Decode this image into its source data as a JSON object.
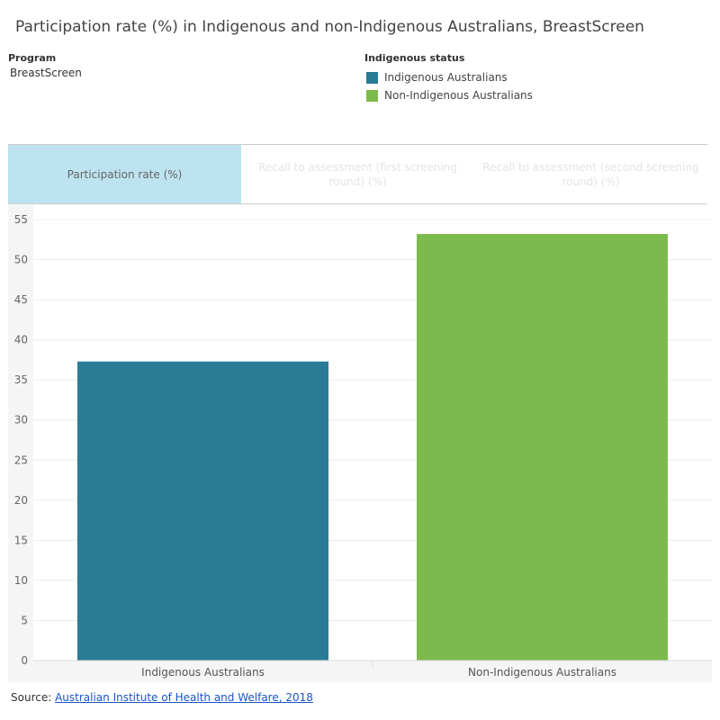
{
  "title": "Participation rate (%) in Indigenous and non-Indigenous Australians, BreastScreen",
  "filter": {
    "label": "Program",
    "value": "BreastScreen"
  },
  "legend": {
    "title": "Indigenous status",
    "items": [
      {
        "label": "Indigenous Australians",
        "color": "#2a7b96"
      },
      {
        "label": "Non-Indigenous Australians",
        "color": "#7dba4d"
      }
    ]
  },
  "tabs": [
    {
      "label": "Participation rate (%)",
      "active": true
    },
    {
      "label": "Recall to assessment (first screening round) (%)",
      "active": false
    },
    {
      "label": "Recall to assessment (second screening round) (%)",
      "active": false
    }
  ],
  "chart_data": {
    "type": "bar",
    "title": "",
    "xlabel": "",
    "ylabel": "",
    "categories": [
      "Indigenous Australians",
      "Non-Indigenous Australians"
    ],
    "values": [
      37.3,
      53.2
    ],
    "colors": [
      "#2a7b96",
      "#7dba4d"
    ],
    "ylim": [
      0,
      55
    ],
    "yticks": [
      0,
      5,
      10,
      15,
      20,
      25,
      30,
      35,
      40,
      45,
      50,
      55
    ],
    "grid": true
  },
  "source": {
    "prefix": "Source: ",
    "link_text": "Australian Institute of Health and Welfare, 2018"
  }
}
